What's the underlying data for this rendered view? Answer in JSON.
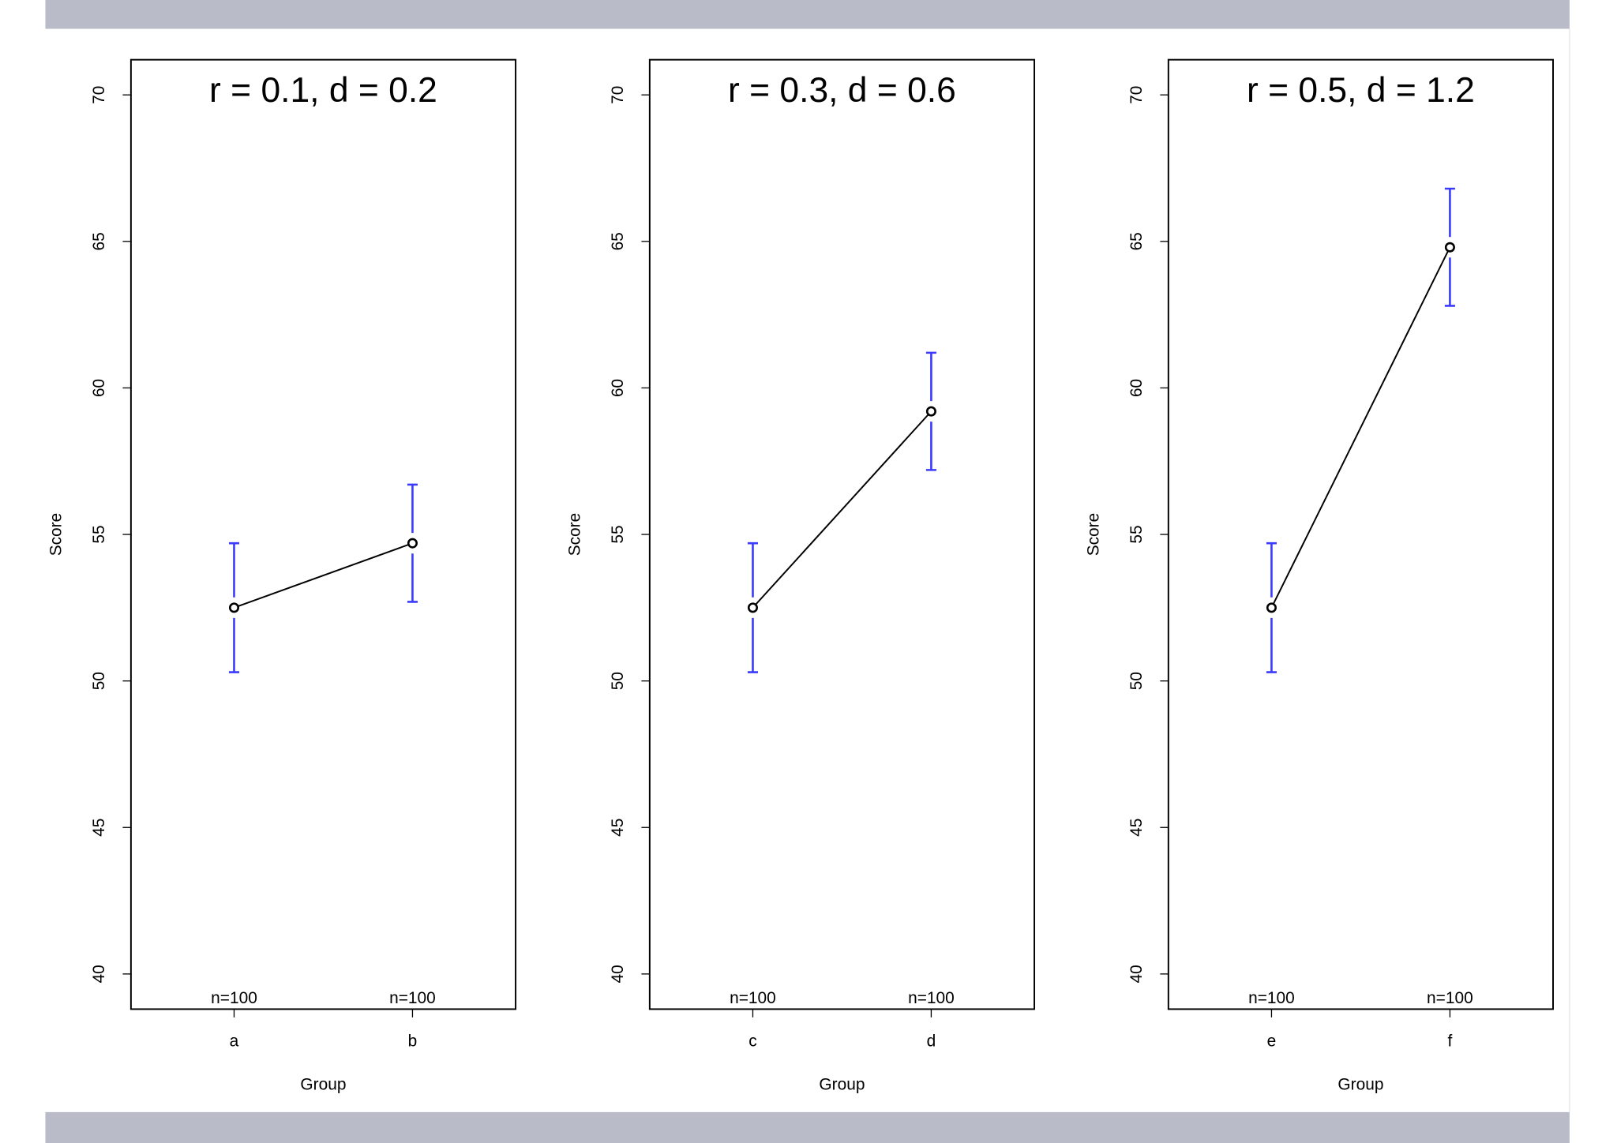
{
  "chart_data": [
    {
      "type": "line",
      "title": "r = 0.1, d = 0.2",
      "xlabel": "Group",
      "ylabel": "Score",
      "categories": [
        "a",
        "b"
      ],
      "values": [
        52.5,
        54.7
      ],
      "errors": [
        2.2,
        2.0
      ],
      "n_labels": [
        "n=100",
        "n=100"
      ],
      "color": "#000000",
      "error_color": "#3b3bff",
      "ylim": [
        38.8,
        71.2
      ],
      "yticks": [
        40,
        45,
        50,
        55,
        60,
        65,
        70
      ]
    },
    {
      "type": "line",
      "title": "r = 0.3, d = 0.6",
      "xlabel": "Group",
      "ylabel": "Score",
      "categories": [
        "c",
        "d"
      ],
      "values": [
        52.5,
        59.2
      ],
      "errors": [
        2.2,
        2.0
      ],
      "n_labels": [
        "n=100",
        "n=100"
      ],
      "color": "#000000",
      "error_color": "#3b3bff",
      "ylim": [
        38.8,
        71.2
      ],
      "yticks": [
        40,
        45,
        50,
        55,
        60,
        65,
        70
      ]
    },
    {
      "type": "line",
      "title": "r = 0.5, d = 1.2",
      "xlabel": "Group",
      "ylabel": "Score",
      "categories": [
        "e",
        "f"
      ],
      "values": [
        52.5,
        64.8
      ],
      "errors": [
        2.2,
        2.0
      ],
      "n_labels": [
        "n=100",
        "n=100"
      ],
      "color": "#000000",
      "error_color": "#3b3bff",
      "ylim": [
        38.8,
        71.2
      ],
      "yticks": [
        40,
        45,
        50,
        55,
        60,
        65,
        70
      ]
    }
  ]
}
